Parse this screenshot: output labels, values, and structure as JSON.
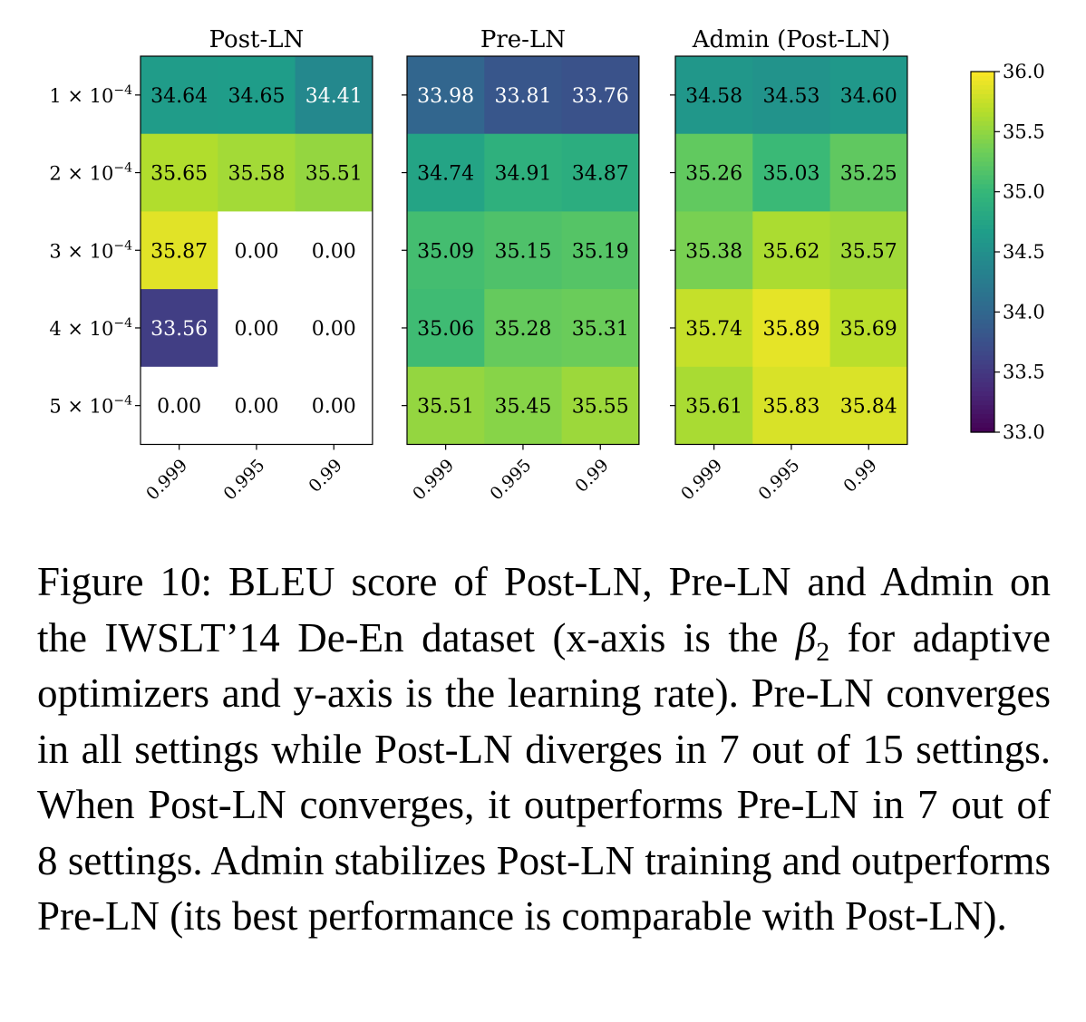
{
  "chart_data": {
    "type": "heatmap",
    "panels": [
      {
        "title": "Post-LN",
        "values": [
          [
            34.64,
            34.65,
            34.41
          ],
          [
            35.65,
            35.58,
            35.51
          ],
          [
            35.87,
            0.0,
            0.0
          ],
          [
            33.56,
            0.0,
            0.0
          ],
          [
            0.0,
            0.0,
            0.0
          ]
        ]
      },
      {
        "title": "Pre-LN",
        "values": [
          [
            33.98,
            33.81,
            33.76
          ],
          [
            34.74,
            34.91,
            34.87
          ],
          [
            35.09,
            35.15,
            35.19
          ],
          [
            35.06,
            35.28,
            35.31
          ],
          [
            35.51,
            35.45,
            35.55
          ]
        ]
      },
      {
        "title": "Admin (Post-LN)",
        "values": [
          [
            34.58,
            34.53,
            34.6
          ],
          [
            35.26,
            35.03,
            35.25
          ],
          [
            35.38,
            35.62,
            35.57
          ],
          [
            35.74,
            35.89,
            35.69
          ],
          [
            35.61,
            35.83,
            35.84
          ]
        ]
      }
    ],
    "x_ticks": [
      "0.999",
      "0.995",
      "0.99"
    ],
    "y_ticks": [
      {
        "mantissa": "1",
        "exponent": "−4"
      },
      {
        "mantissa": "2",
        "exponent": "−4"
      },
      {
        "mantissa": "3",
        "exponent": "−4"
      },
      {
        "mantissa": "4",
        "exponent": "−4"
      },
      {
        "mantissa": "5",
        "exponent": "−4"
      }
    ],
    "colorbar": {
      "min": 33.0,
      "max": 36.0,
      "ticks": [
        "36.0",
        "35.5",
        "35.0",
        "34.5",
        "34.0",
        "33.5",
        "33.0"
      ],
      "colormap": "viridis"
    },
    "masked_value": 0.0,
    "masked_color": "#ffffff"
  },
  "caption": {
    "label": "Figure 10:",
    "part1": "BLEU score of Post-LN, Pre-LN and Admin on the IWSLT’14 De-En dataset (x-axis is the",
    "beta": "β",
    "beta_sub": "2",
    "part2": "for adaptive optimizers and y-axis is the learning rate). Pre-LN converges in all settings while Post-LN diverges in 7 out of 15 settings. When Post-LN converges, it outperforms Pre-LN in 7 out of 8 settings. Admin stabilizes Post-LN training and outperforms Pre-LN (its best performance is comparable with Post-LN)."
  }
}
